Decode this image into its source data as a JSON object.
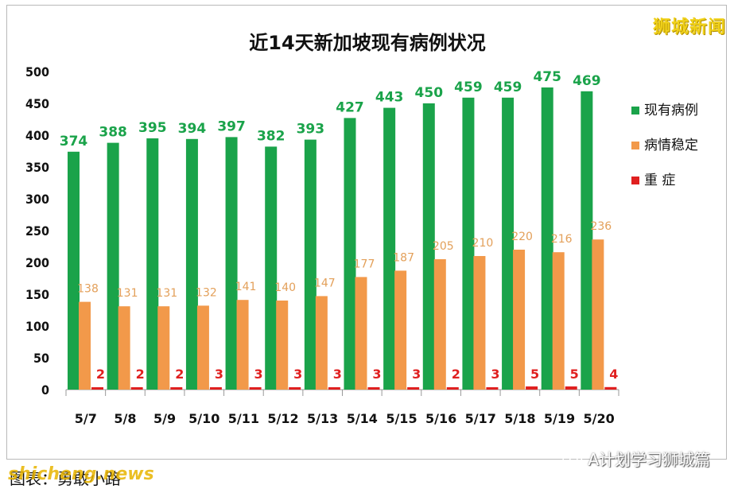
{
  "watermark_top": "狮城新闻",
  "footer_left_text": "图表：勇敢小路",
  "footer_overlay_text": "shicheng.news",
  "footer_right_text": "A计划学习狮城篇",
  "colors": {
    "series1": "#1aa34a",
    "series2": "#f2994a",
    "series3": "#e02020",
    "label1": "#1aa34a",
    "label2": "#e3a05a",
    "label3": "#e02020"
  },
  "chart_data": {
    "type": "bar",
    "title": "近14天新加坡现有病例状况",
    "xlabel": "",
    "ylabel": "",
    "ylim": [
      0,
      500
    ],
    "yticks": [
      "0",
      "50",
      "100",
      "150",
      "200",
      "250",
      "300",
      "350",
      "400",
      "450",
      "500"
    ],
    "categories": [
      "5/7",
      "5/8",
      "5/9",
      "5/10",
      "5/11",
      "5/12",
      "5/13",
      "5/14",
      "5/15",
      "5/16",
      "5/17",
      "5/18",
      "5/19",
      "5/20"
    ],
    "series": [
      {
        "name": "现有病例",
        "values": [
          374,
          388,
          395,
          394,
          397,
          382,
          393,
          427,
          443,
          450,
          459,
          459,
          475,
          469
        ]
      },
      {
        "name": "病情稳定",
        "values": [
          138,
          131,
          131,
          132,
          141,
          140,
          147,
          177,
          187,
          205,
          210,
          220,
          216,
          236
        ]
      },
      {
        "name": "重 症",
        "values": [
          2,
          2,
          2,
          3,
          3,
          3,
          3,
          3,
          3,
          2,
          3,
          5,
          5,
          4
        ]
      }
    ],
    "legend_position": "right",
    "grid": false,
    "data_labels": true
  }
}
